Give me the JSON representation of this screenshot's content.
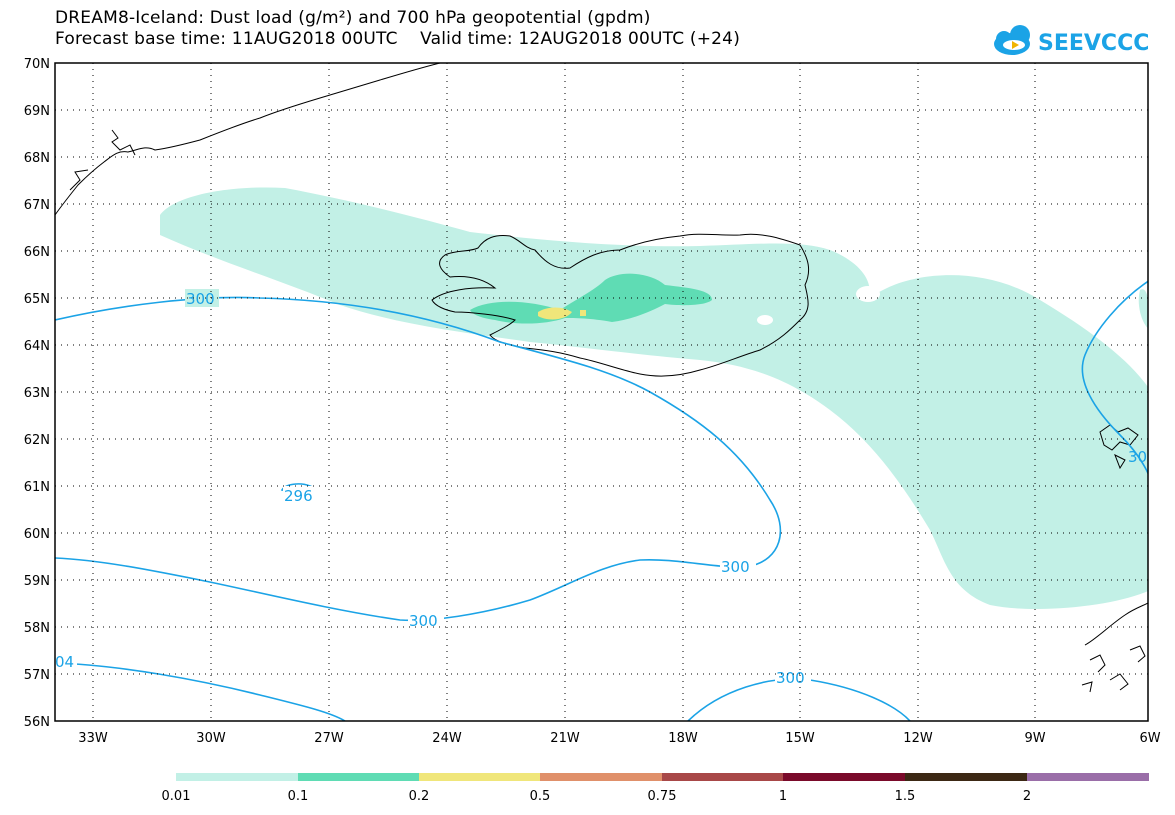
{
  "header": {
    "title_line1": "DREAM8-Iceland: Dust load (g/m²) and 700 hPa geopotential (gpdm)",
    "title_line2": "Forecast base time: 11AUG2018 00UTC    Valid time: 12AUG2018 00UTC (+24)"
  },
  "logo": {
    "text": "SEEVCCC",
    "icon": "cloud-icon",
    "color": "#1ba3e6"
  },
  "axes": {
    "lat_labels": [
      "70N",
      "69N",
      "68N",
      "67N",
      "66N",
      "65N",
      "64N",
      "63N",
      "62N",
      "61N",
      "60N",
      "59N",
      "58N",
      "57N",
      "56N"
    ],
    "lon_labels": [
      "33W",
      "30W",
      "27W",
      "24W",
      "21W",
      "18W",
      "15W",
      "12W",
      "9W",
      "6W"
    ]
  },
  "contours": {
    "labels": [
      "300",
      "296",
      "300",
      "300",
      "300",
      "30",
      "04"
    ],
    "color": "#1ba3e6"
  },
  "legend": {
    "tick_labels": [
      "0.01",
      "0.1",
      "0.2",
      "0.5",
      "0.75",
      "1",
      "1.5",
      "2"
    ],
    "colors": [
      "#c2f0e6",
      "#5fdcb4",
      "#f0e67a",
      "#e0906a",
      "#a84848",
      "#7a0a2a",
      "#3c2814",
      "#9a6ea8"
    ]
  }
}
